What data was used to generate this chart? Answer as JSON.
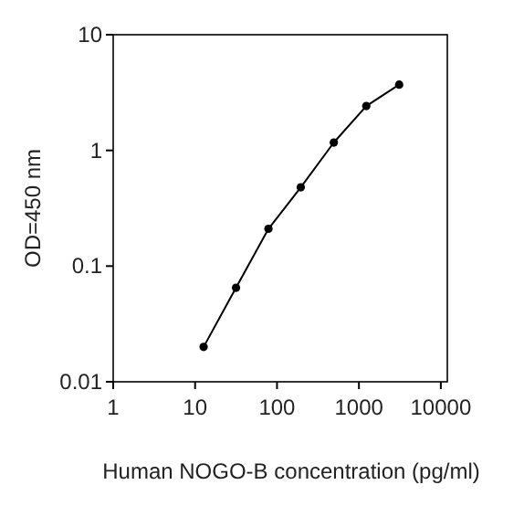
{
  "chart_data": {
    "type": "line",
    "xlabel": "Human NOGO-B concentration (pg/ml)",
    "ylabel": "OD=450 nm",
    "log": "xy",
    "marker": "circle",
    "line_style": "solid",
    "x": [
      12.7,
      31.6,
      78.6,
      195,
      494,
      1230,
      3100
    ],
    "series": [
      {
        "color": "#000000",
        "values": [
          0.02,
          0.065,
          0.21,
          0.48,
          1.17,
          2.42,
          3.7
        ]
      }
    ],
    "xlim": [
      1,
      12000
    ],
    "xticks": [
      1,
      10,
      100,
      1000,
      10000
    ],
    "ylim": [
      0.01,
      10
    ],
    "yticks": [
      {
        "value": 0.01,
        "label": "0.01"
      },
      {
        "value": 0.1,
        "label": "0.1"
      },
      1,
      10
    ]
  }
}
